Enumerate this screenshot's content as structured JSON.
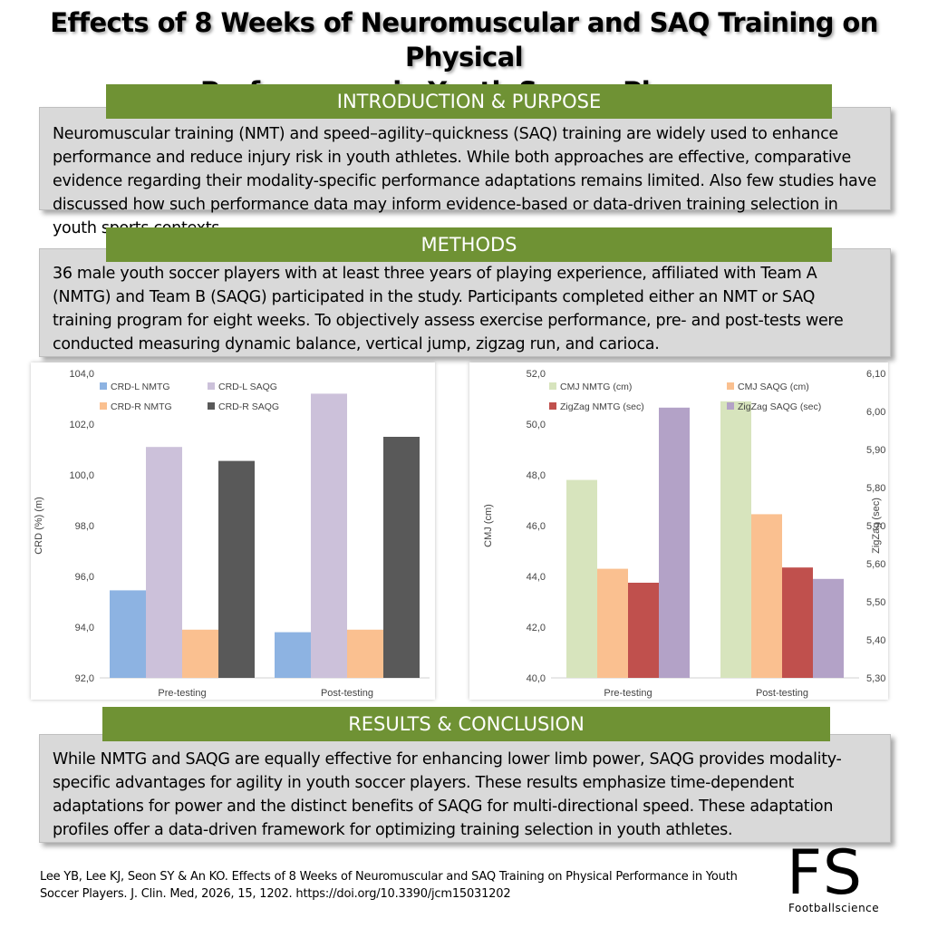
{
  "title_line1": "Effects of 8 Weeks of Neuromuscular and SAQ Training on Physical",
  "title_line2": "Performance in Youth Soccer Players",
  "sections": {
    "intro_heading": "INTRODUCTION & PURPOSE",
    "intro_text": "Neuromuscular training (NMT) and speed–agility–quickness (SAQ) training are widely used to enhance performance and reduce injury risk in youth athletes. While both approaches are effective, comparative evidence regarding their modality-specific performance adaptations remains limited. Also few studies have discussed how such performance data may inform evidence-based or data-driven training selection in youth sports contexts.",
    "methods_heading": "METHODS",
    "methods_text": "36 male youth soccer players with at least three years of playing experience, affiliated with Team A (NMTG) and Team B (SAQG) participated in the study. Participants completed either an NMT or SAQ training program for eight weeks. To objectively assess exercise performance, pre- and post-tests were conducted measuring dynamic balance, vertical jump, zigzag run, and carioca.",
    "results_heading": "RESULTS & CONCLUSION",
    "results_text": "While NMTG and SAQG are equally effective for enhancing lower limb power, SAQG provides modality-specific advantages for agility in youth soccer players. These results emphasize time-dependent adaptations for power and the distinct benefits of SAQG for multi-directional speed. These adaptation profiles offer a data-driven framework for optimizing training selection in youth athletes."
  },
  "citation": "Lee YB, Lee KJ, Seon SY & An KO. Effects of 8 Weeks of Neuromuscular and SAQ Training on Physical Performance in Youth Soccer Players. J. Clin. Med, 2026, 15, 1202. https://doi.org/10.3390/jcm15031202",
  "logo": {
    "letters": "FS",
    "sub": "Footballscience"
  },
  "colors": {
    "banner": "#6f9234",
    "box": "#d9d9d9"
  },
  "chart_data": [
    {
      "type": "bar",
      "categories": [
        "Pre-testing",
        "Post-testing"
      ],
      "series": [
        {
          "name": "CRD-L NMTG",
          "color": "#8db3e2",
          "values": [
            95.45,
            93.8
          ]
        },
        {
          "name": "CRD-L SAQG",
          "color": "#ccc1da",
          "values": [
            101.1,
            103.2
          ]
        },
        {
          "name": "CRD-R NMTG",
          "color": "#fac090",
          "values": [
            93.9,
            93.9
          ]
        },
        {
          "name": "CRD-R SAQG",
          "color": "#595959",
          "values": [
            100.55,
            101.5
          ]
        }
      ],
      "ylabel": "CRD (%) (m)",
      "ylim": [
        92,
        104
      ],
      "yticks": [
        "92,0",
        "94,0",
        "96,0",
        "98,0",
        "100,0",
        "102,0",
        "104,0"
      ],
      "legend": "top"
    },
    {
      "type": "bar",
      "categories": [
        "Pre-testing",
        "Post-testing"
      ],
      "series": [
        {
          "name": "CMJ NMTG (cm)",
          "color": "#d7e4bd",
          "axis": "left",
          "values": [
            47.8,
            50.9
          ]
        },
        {
          "name": "CMJ SAQG (cm)",
          "color": "#fac090",
          "axis": "left",
          "values": [
            44.3,
            46.45
          ]
        },
        {
          "name": "ZigZag NMTG (sec)",
          "color": "#c0504d",
          "axis": "right",
          "values": [
            5.55,
            5.59
          ]
        },
        {
          "name": "ZigZag SAQG (sec)",
          "color": "#b3a2c7",
          "axis": "right",
          "values": [
            6.01,
            5.56
          ]
        }
      ],
      "ylabel": "CMJ (cm)",
      "ylim": [
        40,
        52
      ],
      "yticks": [
        "40,0",
        "42,0",
        "44,0",
        "46,0",
        "48,0",
        "50,0",
        "52,0"
      ],
      "y2label": "ZigZag (sec)",
      "y2lim": [
        5.3,
        6.1
      ],
      "y2ticks": [
        "5,30",
        "5,40",
        "5,50",
        "5,60",
        "5,70",
        "5,80",
        "5,90",
        "6,00",
        "6,10"
      ],
      "legend": "top"
    }
  ]
}
